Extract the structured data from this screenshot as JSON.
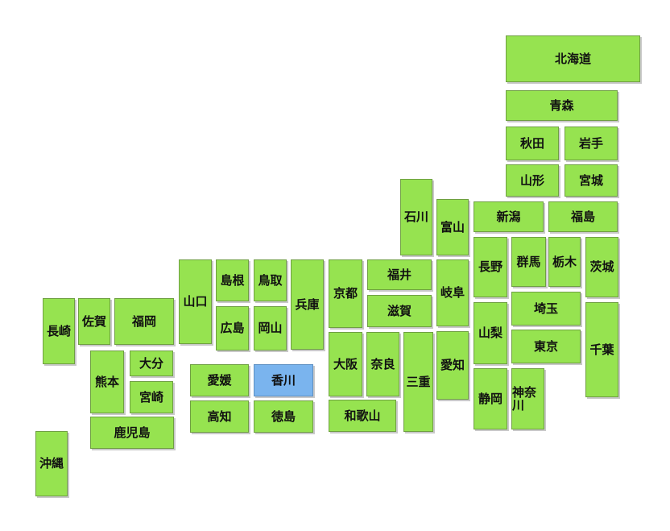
{
  "colors": {
    "default": "#96e350",
    "selected": "#7ab4ee"
  },
  "selected_prefecture": "香川",
  "prefectures": [
    {
      "name": "北海道",
      "slug": "hokkaido"
    },
    {
      "name": "青森",
      "slug": "aomori"
    },
    {
      "name": "秋田",
      "slug": "akita"
    },
    {
      "name": "岩手",
      "slug": "iwate"
    },
    {
      "name": "山形",
      "slug": "yamagata"
    },
    {
      "name": "宮城",
      "slug": "miyagi"
    },
    {
      "name": "新潟",
      "slug": "niigata"
    },
    {
      "name": "福島",
      "slug": "fukushima"
    },
    {
      "name": "石川",
      "slug": "ishikawa"
    },
    {
      "name": "富山",
      "slug": "toyama"
    },
    {
      "name": "長野",
      "slug": "nagano"
    },
    {
      "name": "群馬",
      "slug": "gunma"
    },
    {
      "name": "栃木",
      "slug": "tochigi"
    },
    {
      "name": "茨城",
      "slug": "ibaraki"
    },
    {
      "name": "埼玉",
      "slug": "saitama"
    },
    {
      "name": "東京",
      "slug": "tokyo"
    },
    {
      "name": "千葉",
      "slug": "chiba"
    },
    {
      "name": "山梨",
      "slug": "yamanashi"
    },
    {
      "name": "静岡",
      "slug": "shizuoka"
    },
    {
      "name": "神奈川",
      "slug": "kanagawa"
    },
    {
      "name": "福井",
      "slug": "fukui"
    },
    {
      "name": "岐阜",
      "slug": "gifu"
    },
    {
      "name": "滋賀",
      "slug": "shiga"
    },
    {
      "name": "京都",
      "slug": "kyoto"
    },
    {
      "name": "愛知",
      "slug": "aichi"
    },
    {
      "name": "三重",
      "slug": "mie"
    },
    {
      "name": "大阪",
      "slug": "osaka"
    },
    {
      "name": "奈良",
      "slug": "nara"
    },
    {
      "name": "和歌山",
      "slug": "wakayama"
    },
    {
      "name": "兵庫",
      "slug": "hyogo"
    },
    {
      "name": "鳥取",
      "slug": "tottori"
    },
    {
      "name": "島根",
      "slug": "shimane"
    },
    {
      "name": "岡山",
      "slug": "okayama"
    },
    {
      "name": "広島",
      "slug": "hiroshima"
    },
    {
      "name": "山口",
      "slug": "yamaguchi"
    },
    {
      "name": "香川",
      "slug": "kagawa"
    },
    {
      "name": "愛媛",
      "slug": "ehime"
    },
    {
      "name": "徳島",
      "slug": "tokushima"
    },
    {
      "name": "高知",
      "slug": "kochi"
    },
    {
      "name": "福岡",
      "slug": "fukuoka"
    },
    {
      "name": "佐賀",
      "slug": "saga"
    },
    {
      "name": "長崎",
      "slug": "nagasaki"
    },
    {
      "name": "大分",
      "slug": "oita"
    },
    {
      "name": "熊本",
      "slug": "kumamoto"
    },
    {
      "name": "宮崎",
      "slug": "miyazaki"
    },
    {
      "name": "鹿児島",
      "slug": "kagoshima"
    },
    {
      "name": "沖縄",
      "slug": "okinawa"
    }
  ]
}
